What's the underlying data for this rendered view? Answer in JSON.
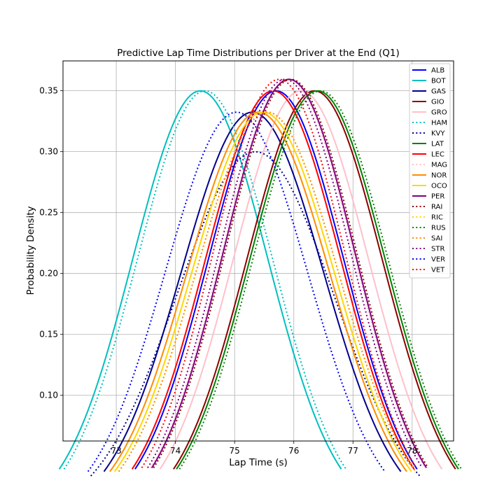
{
  "chart_data": {
    "type": "line",
    "title": "Predictive Lap Time Distributions per Driver at the End (Q1)",
    "xlabel": "Lap Time (s)",
    "ylabel": "Probability Density",
    "xlim": [
      72.1,
      78.7
    ],
    "ylim": [
      0.0625,
      0.3745
    ],
    "xticks": [
      73,
      74,
      75,
      76,
      77,
      78
    ],
    "yticks": [
      0.1,
      0.15,
      0.2,
      0.25,
      0.3,
      0.35
    ],
    "ytick_labels": [
      "0.10",
      "0.15",
      "0.20",
      "0.25",
      "0.30",
      "0.35"
    ],
    "grid": true,
    "legend_position": "top-right",
    "curve_model": "normal density, clipped at ±2.09 standard deviations",
    "series": [
      {
        "name": "ALB",
        "color": "#0000ff",
        "style": "solid",
        "mean": 75.7,
        "sd": 1.14
      },
      {
        "name": "BOT",
        "color": "#00bfbf",
        "style": "solid",
        "mean": 74.42,
        "sd": 1.14
      },
      {
        "name": "GAS",
        "color": "#00008b",
        "style": "solid",
        "mean": 75.3,
        "sd": 1.2
      },
      {
        "name": "GIO",
        "color": "#8b0000",
        "style": "solid",
        "mean": 76.35,
        "sd": 1.14
      },
      {
        "name": "GRO",
        "color": "#ffc0cb",
        "style": "solid",
        "mean": 76.12,
        "sd": 1.14
      },
      {
        "name": "HAM",
        "color": "#00bfbf",
        "style": "dotted",
        "mean": 74.5,
        "sd": 1.14
      },
      {
        "name": "KVY",
        "color": "#00008b",
        "style": "dotted",
        "mean": 75.35,
        "sd": 1.33
      },
      {
        "name": "LAT",
        "color": "#008000",
        "style": "solid",
        "mean": 76.4,
        "sd": 1.14
      },
      {
        "name": "LEC",
        "color": "#ff0000",
        "style": "solid",
        "mean": 75.65,
        "sd": 1.14
      },
      {
        "name": "MAG",
        "color": "#ffc0cb",
        "style": "dotted",
        "mean": 75.9,
        "sd": 1.11
      },
      {
        "name": "NOR",
        "color": "#ff8c00",
        "style": "solid",
        "mean": 75.4,
        "sd": 1.2
      },
      {
        "name": "OCO",
        "color": "#ffd700",
        "style": "solid",
        "mean": 75.48,
        "sd": 1.2
      },
      {
        "name": "PER",
        "color": "#800080",
        "style": "solid",
        "mean": 75.92,
        "sd": 1.11
      },
      {
        "name": "RAI",
        "color": "#8b0000",
        "style": "dotted",
        "mean": 75.95,
        "sd": 1.11
      },
      {
        "name": "RIC",
        "color": "#ffd700",
        "style": "dotted",
        "mean": 75.55,
        "sd": 1.2
      },
      {
        "name": "RUS",
        "color": "#008000",
        "style": "dotted",
        "mean": 76.45,
        "sd": 1.14
      },
      {
        "name": "SAI",
        "color": "#ff8c00",
        "style": "dotted",
        "mean": 75.55,
        "sd": 1.2
      },
      {
        "name": "STR",
        "color": "#800080",
        "style": "dotted",
        "mean": 75.85,
        "sd": 1.11
      },
      {
        "name": "VER",
        "color": "#0000ff",
        "style": "dotted",
        "mean": 75.03,
        "sd": 1.2
      },
      {
        "name": "VET",
        "color": "#ff0000",
        "style": "dotted",
        "mean": 75.75,
        "sd": 1.11
      }
    ]
  }
}
